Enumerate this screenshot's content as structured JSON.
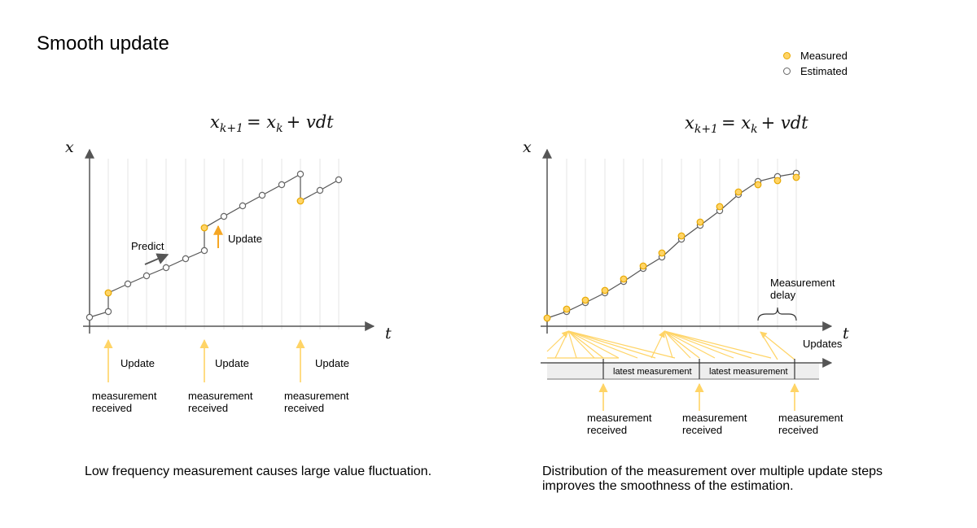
{
  "title": "Smooth update",
  "legend": {
    "measured": "Measured",
    "estimated": "Estimated"
  },
  "colors": {
    "measured_fill": "#ffd466",
    "measured_stroke": "#e8a800",
    "estimated_stroke": "#666666",
    "arrow_orange": "#f5a623",
    "arrow_yellow": "#ffd466"
  },
  "left": {
    "equation": "x",
    "equation_sub": "k+1",
    "equation_rhs": "= x",
    "equation_rhs_sub": "k",
    "equation_tail": "+ vdt",
    "axis_y": "x",
    "axis_x": "t",
    "predict_label": "Predict",
    "update_label": "Update",
    "bottom_updates": [
      "Update",
      "Update",
      "Update"
    ],
    "received_line1": "measurement",
    "received_line2": "received",
    "caption": "Low frequency measurement causes large value fluctuation."
  },
  "right": {
    "equation": "x",
    "equation_sub": "k+1",
    "equation_rhs": "= x",
    "equation_rhs_sub": "k",
    "equation_tail": "+ vdt",
    "axis_y": "x",
    "axis_x": "t",
    "delay_line1": "Measurement",
    "delay_line2": "delay",
    "updates_label": "Updates",
    "latest": [
      "latest measurement",
      "latest measurement"
    ],
    "received_line1": "measurement",
    "received_line2": "received",
    "caption": "Distribution of the measurement over multiple update steps improves the smoothness of the estimation."
  }
}
